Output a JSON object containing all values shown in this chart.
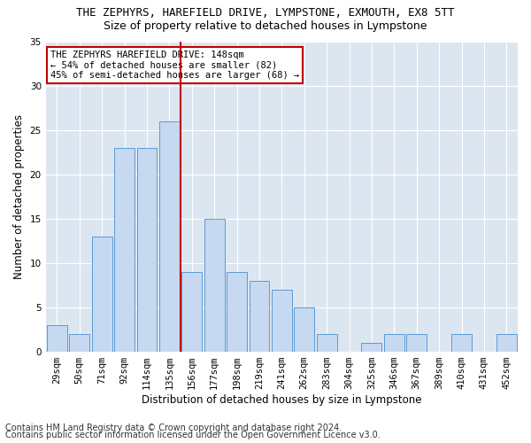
{
  "title": "THE ZEPHYRS, HAREFIELD DRIVE, LYMPSTONE, EXMOUTH, EX8 5TT",
  "subtitle": "Size of property relative to detached houses in Lympstone",
  "xlabel": "Distribution of detached houses by size in Lympstone",
  "ylabel": "Number of detached properties",
  "bar_labels": [
    "29sqm",
    "50sqm",
    "71sqm",
    "92sqm",
    "114sqm",
    "135sqm",
    "156sqm",
    "177sqm",
    "198sqm",
    "219sqm",
    "241sqm",
    "262sqm",
    "283sqm",
    "304sqm",
    "325sqm",
    "346sqm",
    "367sqm",
    "389sqm",
    "410sqm",
    "431sqm",
    "452sqm"
  ],
  "bar_values": [
    3,
    2,
    13,
    23,
    23,
    26,
    9,
    15,
    9,
    8,
    7,
    5,
    2,
    0,
    1,
    2,
    2,
    0,
    2,
    0,
    2
  ],
  "bar_color": "#c6d9f0",
  "bar_edge_color": "#5b9bd5",
  "vline_x": 5.5,
  "vline_color": "#c00000",
  "annotation_text": "THE ZEPHYRS HAREFIELD DRIVE: 148sqm\n← 54% of detached houses are smaller (82)\n45% of semi-detached houses are larger (68) →",
  "annotation_box_color": "#ffffff",
  "annotation_box_edge": "#c00000",
  "ylim": [
    0,
    35
  ],
  "yticks": [
    0,
    5,
    10,
    15,
    20,
    25,
    30,
    35
  ],
  "footnote1": "Contains HM Land Registry data © Crown copyright and database right 2024.",
  "footnote2": "Contains public sector information licensed under the Open Government Licence v3.0.",
  "plot_bg_color": "#dce6f1",
  "title_fontsize": 9,
  "subtitle_fontsize": 9,
  "axis_label_fontsize": 8.5,
  "tick_fontsize": 7.5,
  "annotation_fontsize": 7.5,
  "footnote_fontsize": 7
}
